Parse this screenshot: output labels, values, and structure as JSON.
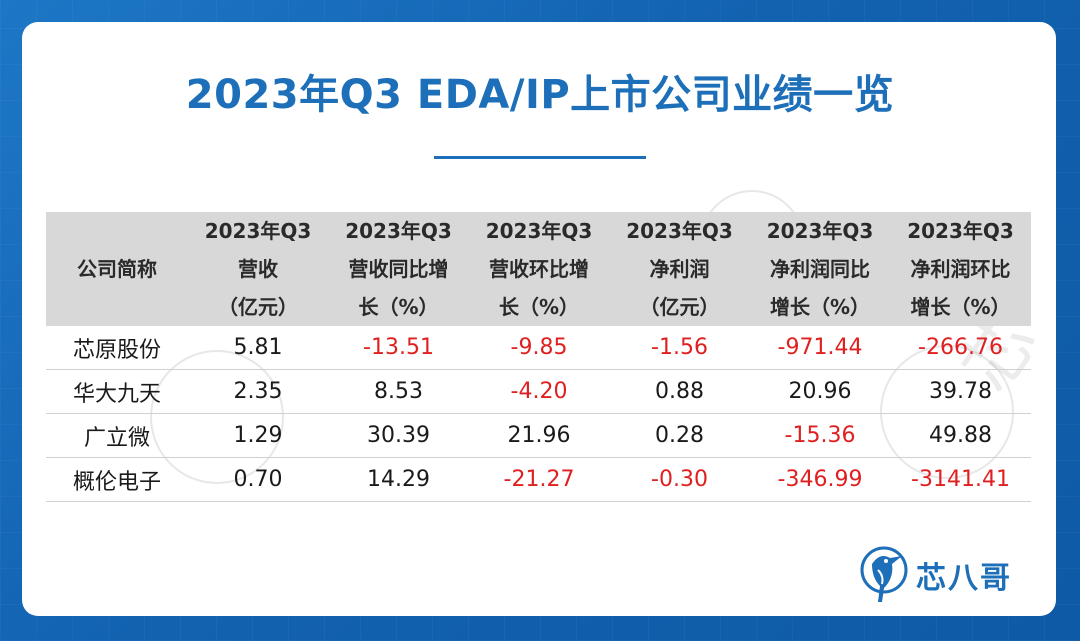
{
  "title": "2023年Q3 EDA/IP上市公司业绩一览",
  "table": {
    "headers": [
      [
        "公司简称"
      ],
      [
        "2023年Q3",
        "营收",
        "（亿元）"
      ],
      [
        "2023年Q3",
        "营收同比增",
        "长（%）"
      ],
      [
        "2023年Q3",
        "营收环比增",
        "长（%）"
      ],
      [
        "2023年Q3",
        "净利润",
        "（亿元）"
      ],
      [
        "2023年Q3",
        "净利润同比",
        "增长（%）"
      ],
      [
        "2023年Q3",
        "净利润环比",
        "增长（%）"
      ]
    ],
    "rows": [
      [
        "芯原股份",
        "5.81",
        "-13.51",
        "-9.85",
        "-1.56",
        "-971.44",
        "-266.76"
      ],
      [
        "华大九天",
        "2.35",
        "8.53",
        "-4.20",
        "0.88",
        "20.96",
        "39.78"
      ],
      [
        "广立微",
        "1.29",
        "30.39",
        "21.96",
        "0.28",
        "-15.36",
        "49.88"
      ],
      [
        "概伦电子",
        "0.70",
        "14.29",
        "-21.27",
        "-0.30",
        "-346.99",
        "-3141.41"
      ]
    ]
  },
  "logo": {
    "text": "芯八哥",
    "icon": "kingfisher-bird-icon"
  },
  "colors": {
    "accent": "#1c6fb8",
    "negative": "#e02020",
    "header_bg": "#d8d8d8",
    "background": "#1567b4"
  }
}
